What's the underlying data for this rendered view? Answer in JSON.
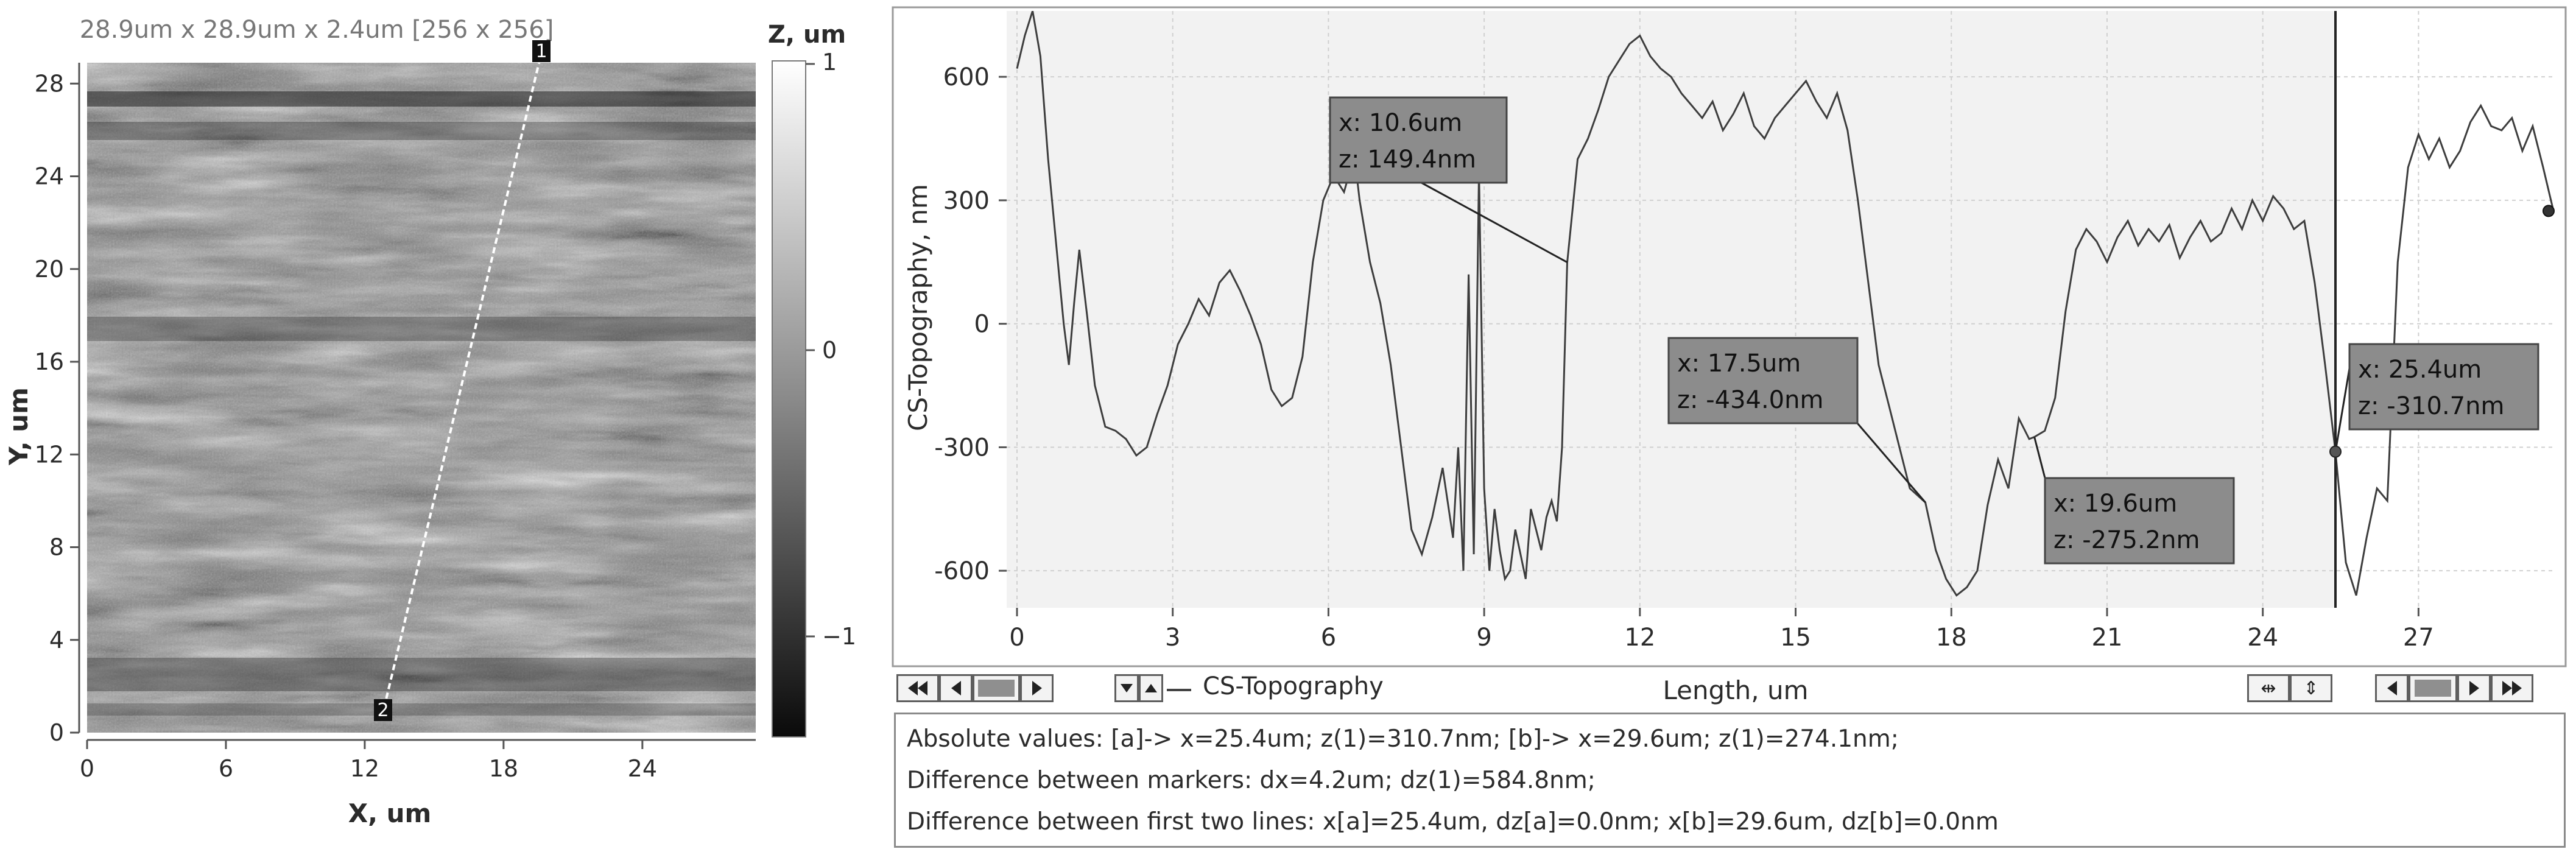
{
  "map": {
    "title": "28.9um x 28.9um x 2.4um [256 x 256]",
    "xlabel": "X, um",
    "ylabel": "Y, um",
    "xticks": [
      "0",
      "6",
      "12",
      "18",
      "24"
    ],
    "yticks": [
      "0",
      "4",
      "8",
      "12",
      "16",
      "20",
      "24",
      "28"
    ],
    "marker1": "1",
    "marker2": "2",
    "colorbar_title": "Z, um",
    "colorbar_ticks": [
      "1",
      "0",
      "−1"
    ]
  },
  "profile": {
    "ylabel": "CS-Topography, nm",
    "xlabel": "Length, um",
    "legend": "CS-Topography",
    "callouts": [
      {
        "x_text": "x: 10.6um",
        "z_text": "z: 149.4nm"
      },
      {
        "x_text": "x: 17.5um",
        "z_text": "z: -434.0nm"
      },
      {
        "x_text": "x: 19.6um",
        "z_text": "z: -275.2nm"
      },
      {
        "x_text": "x: 25.4um",
        "z_text": "z: -310.7nm"
      }
    ]
  },
  "chart_data": {
    "type": "line",
    "xlabel": "Length, um",
    "ylabel": "CS-Topography, nm",
    "xlim": [
      0,
      29.6
    ],
    "ylim": [
      -690,
      760
    ],
    "xticks": [
      0,
      3,
      6,
      9,
      12,
      15,
      18,
      21,
      24,
      27
    ],
    "yticks": [
      -600,
      -300,
      0,
      300,
      600
    ],
    "grid": true,
    "series": [
      {
        "name": "CS-Topography",
        "x": [
          0,
          0.15,
          0.3,
          0.45,
          0.6,
          0.75,
          0.9,
          1.0,
          1.1,
          1.2,
          1.35,
          1.5,
          1.7,
          1.9,
          2.1,
          2.3,
          2.5,
          2.7,
          2.9,
          3.1,
          3.3,
          3.5,
          3.7,
          3.9,
          4.1,
          4.3,
          4.5,
          4.7,
          4.9,
          5.1,
          5.3,
          5.5,
          5.7,
          5.9,
          6.1,
          6.3,
          6.5,
          6.6,
          6.8,
          7.0,
          7.2,
          7.4,
          7.6,
          7.8,
          8.0,
          8.2,
          8.4,
          8.5,
          8.6,
          8.7,
          8.8,
          8.9,
          9.0,
          9.1,
          9.2,
          9.3,
          9.4,
          9.5,
          9.6,
          9.7,
          9.8,
          9.9,
          10.0,
          10.1,
          10.2,
          10.3,
          10.4,
          10.5,
          10.6,
          10.8,
          11.0,
          11.2,
          11.4,
          11.6,
          11.8,
          12.0,
          12.2,
          12.4,
          12.6,
          12.8,
          13.0,
          13.2,
          13.4,
          13.6,
          13.8,
          14.0,
          14.2,
          14.4,
          14.6,
          14.8,
          15.0,
          15.2,
          15.4,
          15.6,
          15.8,
          16.0,
          16.2,
          16.4,
          16.6,
          16.8,
          17.0,
          17.2,
          17.5,
          17.7,
          17.9,
          18.1,
          18.3,
          18.5,
          18.7,
          18.9,
          19.1,
          19.3,
          19.5,
          19.6,
          19.8,
          20.0,
          20.2,
          20.4,
          20.6,
          20.8,
          21.0,
          21.2,
          21.4,
          21.6,
          21.8,
          22.0,
          22.2,
          22.4,
          22.6,
          22.8,
          23.0,
          23.2,
          23.4,
          23.6,
          23.8,
          24.0,
          24.2,
          24.4,
          24.6,
          24.8,
          25.0,
          25.2,
          25.4,
          25.6,
          25.8,
          26.0,
          26.2,
          26.4,
          26.6,
          26.8,
          27.0,
          27.2,
          27.4,
          27.6,
          27.8,
          28.0,
          28.2,
          28.4,
          28.6,
          28.8,
          29.0,
          29.2,
          29.4,
          29.6
        ],
        "values": [
          620,
          700,
          760,
          650,
          400,
          200,
          0,
          -100,
          50,
          180,
          20,
          -150,
          -250,
          -260,
          -280,
          -320,
          -300,
          -220,
          -150,
          -50,
          0,
          60,
          20,
          100,
          130,
          80,
          20,
          -50,
          -160,
          -200,
          -180,
          -80,
          150,
          300,
          360,
          320,
          410,
          300,
          150,
          50,
          -100,
          -300,
          -500,
          -560,
          -470,
          -350,
          -520,
          -300,
          -600,
          120,
          -560,
          370,
          -400,
          -600,
          -450,
          -550,
          -620,
          -600,
          -500,
          -560,
          -620,
          -450,
          -500,
          -550,
          -470,
          -430,
          -480,
          -300,
          149,
          400,
          450,
          520,
          600,
          640,
          680,
          700,
          650,
          620,
          600,
          560,
          530,
          500,
          540,
          470,
          510,
          560,
          480,
          450,
          500,
          530,
          560,
          590,
          540,
          500,
          560,
          470,
          300,
          100,
          -100,
          -200,
          -300,
          -400,
          -434,
          -550,
          -620,
          -660,
          -640,
          -600,
          -440,
          -330,
          -400,
          -230,
          -280,
          -275,
          -260,
          -180,
          30,
          180,
          230,
          200,
          150,
          210,
          250,
          190,
          230,
          200,
          240,
          160,
          210,
          250,
          200,
          220,
          280,
          230,
          300,
          250,
          310,
          280,
          230,
          250,
          100,
          -100,
          -310.7,
          -580,
          -660,
          -520,
          -400,
          -430,
          150,
          380,
          460,
          400,
          450,
          380,
          420,
          490,
          530,
          480,
          470,
          500,
          420,
          480,
          380,
          274.1
        ]
      }
    ],
    "cursors": [
      25.4,
      29.6
    ],
    "callouts": [
      {
        "x": 10.6,
        "z": 149.4
      },
      {
        "x": 17.5,
        "z": -434.0
      },
      {
        "x": 19.6,
        "z": -275.2
      },
      {
        "x": 25.4,
        "z": -310.7
      }
    ]
  },
  "info": {
    "line1": "Absolute values: [a]-> x=25.4um;  z(1)=310.7nm;    [b]-> x=29.6um;  z(1)=274.1nm;",
    "line2": "Difference between markers: dx=4.2um; dz(1)=584.8nm;",
    "line3": "Difference between first two lines: x[a]=25.4um, dz[a]=0.0nm;   x[b]=29.6um, dz[b]=0.0nm"
  }
}
